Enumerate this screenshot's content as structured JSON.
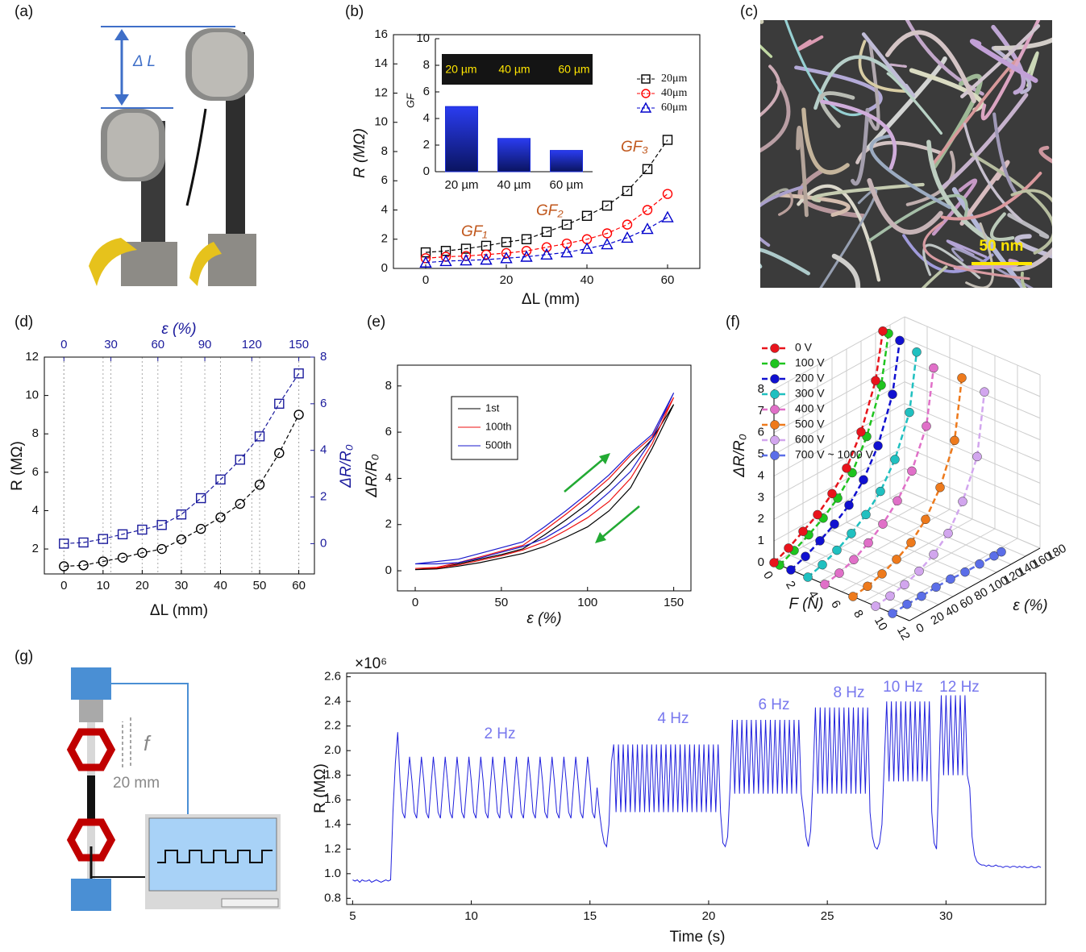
{
  "panel_labels": [
    "(a)",
    "(b)",
    "(c)",
    "(d)",
    "(e)",
    "(f)",
    "(g)"
  ],
  "panel_a": {
    "delta_label": "Δ L"
  },
  "panel_c": {
    "scale_bar": "50 nm"
  },
  "panel_g_schematic": {
    "force": "f",
    "amplitude": "20 mm"
  },
  "chart_data": [
    {
      "type": "line",
      "xlabel": "ΔL (mm)",
      "ylabel": "R (MΩ)",
      "x": [
        0,
        5,
        10,
        15,
        20,
        25,
        30,
        35,
        40,
        45,
        50,
        55,
        60
      ],
      "xlim": [
        -8,
        68
      ],
      "xticks": [
        0,
        20,
        40,
        60
      ],
      "ylim": [
        0,
        16
      ],
      "yticks": [
        0,
        2,
        4,
        6,
        8,
        10,
        12,
        14,
        16
      ],
      "series": [
        {
          "name": "20μm",
          "color": "#000000",
          "marker": "square",
          "values": [
            1.1,
            1.2,
            1.35,
            1.55,
            1.8,
            2.0,
            2.5,
            3.0,
            3.6,
            4.3,
            5.3,
            6.8,
            8.8
          ]
        },
        {
          "name": "40μm",
          "color": "#ff0000",
          "marker": "circle",
          "values": [
            0.7,
            0.8,
            0.85,
            0.95,
            1.05,
            1.2,
            1.45,
            1.7,
            2.0,
            2.4,
            3.0,
            4.0,
            5.1
          ]
        },
        {
          "name": "60μm",
          "color": "#0000cc",
          "marker": "triangle",
          "values": [
            0.4,
            0.5,
            0.55,
            0.6,
            0.7,
            0.8,
            0.95,
            1.1,
            1.35,
            1.65,
            2.1,
            2.7,
            3.5
          ]
        }
      ],
      "annotations": [
        "GF₁",
        "GF₂",
        "GF₃"
      ]
    },
    {
      "type": "bar",
      "ylabel": "GF",
      "categories": [
        "20 µm",
        "40 µm",
        "60 µm"
      ],
      "values": [
        4.9,
        2.5,
        1.6
      ],
      "color": "#1a2bd8",
      "ylim": [
        0,
        10
      ],
      "yticks": [
        0,
        2,
        4,
        6,
        8,
        10
      ],
      "image_labels": [
        "20 µm",
        "40 µm",
        "60 µm"
      ]
    },
    {
      "type": "dual",
      "xlabel": "ΔL (mm)",
      "ylabel": "R (MΩ)",
      "y2label": "ΔR/R₀",
      "x2label": "ε (%)",
      "x": [
        0,
        5,
        10,
        15,
        20,
        25,
        30,
        35,
        40,
        45,
        50,
        55,
        60
      ],
      "xlim": [
        -5,
        64
      ],
      "xticks": [
        0,
        10,
        20,
        30,
        40,
        50,
        60
      ],
      "x2lim": [
        -12.5,
        160
      ],
      "x2ticks": [
        0,
        30,
        60,
        90,
        120,
        150
      ],
      "ylim": [
        0.7,
        12
      ],
      "yticks": [
        2,
        4,
        6,
        8,
        10,
        12
      ],
      "y2lim": [
        -1.3,
        8
      ],
      "y2ticks": [
        0,
        2,
        4,
        6,
        8
      ],
      "grid": true,
      "series": [
        {
          "name": "R",
          "color": "#000000",
          "marker": "circle",
          "values": [
            1.1,
            1.15,
            1.35,
            1.55,
            1.8,
            2.0,
            2.5,
            3.05,
            3.65,
            4.35,
            5.35,
            7.0,
            9.0
          ]
        },
        {
          "name": "ΔR/R₀",
          "color": "#1a1a9c",
          "marker": "square",
          "axis": "y2",
          "values": [
            0,
            0.05,
            0.2,
            0.4,
            0.6,
            0.8,
            1.25,
            1.95,
            2.75,
            3.6,
            4.6,
            6.0,
            7.3
          ]
        }
      ]
    },
    {
      "type": "line",
      "xlabel": "ε (%)",
      "ylabel": "ΔR/R₀",
      "x": [
        0,
        12.5,
        25,
        37.5,
        50,
        62.5,
        75,
        87.5,
        100,
        112.5,
        125,
        137.5,
        150,
        137.5,
        125,
        112.5,
        100,
        87.5,
        75,
        62.5,
        50,
        37.5,
        25,
        12.5,
        0
      ],
      "xlim": [
        -10.3,
        160
      ],
      "xticks": [
        0,
        50,
        100,
        150
      ],
      "ylim": [
        -0.87,
        8.9
      ],
      "yticks": [
        0,
        2,
        4,
        6,
        8
      ],
      "series": [
        {
          "name": "1st",
          "color": "#000000",
          "values": [
            0.05,
            0.1,
            0.3,
            0.5,
            0.7,
            0.95,
            1.55,
            2.2,
            2.9,
            3.7,
            4.7,
            5.7,
            7.2,
            5.3,
            3.6,
            2.6,
            1.9,
            1.45,
            1.05,
            0.75,
            0.55,
            0.35,
            0.2,
            0.08,
            0.05
          ]
        },
        {
          "name": "100th",
          "color": "#ee1111",
          "values": [
            0.1,
            0.15,
            0.35,
            0.6,
            0.85,
            1.1,
            1.75,
            2.45,
            3.2,
            4.0,
            5.0,
            5.8,
            7.5,
            5.5,
            4.0,
            3.0,
            2.3,
            1.75,
            1.25,
            0.9,
            0.65,
            0.45,
            0.25,
            0.12,
            0.1
          ]
        },
        {
          "name": "500th",
          "color": "#1a1acc",
          "values": [
            0.3,
            0.4,
            0.5,
            0.75,
            1.0,
            1.25,
            1.9,
            2.6,
            3.35,
            4.15,
            5.1,
            5.9,
            7.7,
            5.7,
            4.3,
            3.4,
            2.6,
            1.95,
            1.4,
            1.05,
            0.8,
            0.55,
            0.35,
            0.3,
            0.3
          ]
        }
      ]
    },
    {
      "type": "scatter3d",
      "xlabel": "ε (%)",
      "flabel": "F (N)",
      "zlabel": "ΔR/R₀",
      "x": [
        0,
        20,
        40,
        60,
        80,
        100,
        120,
        140,
        150
      ],
      "xlim": [
        0,
        180
      ],
      "xticks": [
        0,
        20,
        40,
        60,
        80,
        100,
        120,
        140,
        160,
        180
      ],
      "flim": [
        0,
        12
      ],
      "fticks": [
        0,
        2,
        4,
        6,
        8,
        10,
        12
      ],
      "zlim": [
        0,
        8
      ],
      "zticks": [
        0,
        1,
        2,
        3,
        4,
        5,
        6,
        7,
        8
      ],
      "series": [
        {
          "name": "0 V",
          "color": "#e8141c",
          "F": 0,
          "values": [
            0,
            0.3,
            0.7,
            1.1,
            1.7,
            2.5,
            3.8,
            5.8,
            7.9
          ]
        },
        {
          "name": "100 V",
          "color": "#1fc41f",
          "F": 0.5,
          "values": [
            0,
            0.3,
            0.65,
            1.05,
            1.6,
            2.4,
            3.7,
            5.7,
            7.9
          ]
        },
        {
          "name": "200 V",
          "color": "#1010d0",
          "F": 1.5,
          "values": [
            0,
            0.25,
            0.6,
            1.0,
            1.5,
            2.3,
            3.5,
            5.5,
            7.8
          ]
        },
        {
          "name": "300 V",
          "color": "#20c0c0",
          "F": 3,
          "values": [
            0,
            0.2,
            0.5,
            0.9,
            1.4,
            2.1,
            3.2,
            5.0,
            7.6
          ]
        },
        {
          "name": "400 V",
          "color": "#e070c8",
          "F": 4.5,
          "values": [
            0,
            0.15,
            0.4,
            0.8,
            1.3,
            2.0,
            3.0,
            4.7,
            7.2
          ]
        },
        {
          "name": "500 V",
          "color": "#ee7a1c",
          "F": 7,
          "values": [
            0,
            0.1,
            0.3,
            0.6,
            1.0,
            1.7,
            2.8,
            4.6,
            7.3
          ]
        },
        {
          "name": "600 V",
          "color": "#d2a6ee",
          "F": 9,
          "values": [
            0,
            0.1,
            0.25,
            0.5,
            0.9,
            1.5,
            2.6,
            4.3,
            7.1
          ]
        },
        {
          "name": "700 V ~ 1000 V",
          "color": "#5b6ee8",
          "F": 10.5,
          "values": [
            0,
            0.05,
            0.05,
            0.1,
            0.1,
            0.05,
            0.05,
            0.05,
            0.05
          ]
        }
      ]
    },
    {
      "type": "line",
      "xlabel": "Time (s)",
      "ylabel": "R (MΩ)",
      "multiplier": "×10⁶",
      "xlim": [
        4.75,
        34.2
      ],
      "xticks": [
        5,
        10,
        15,
        20,
        25,
        30
      ],
      "ylim": [
        0.75,
        2.63
      ],
      "yticks": [
        0.8,
        {
          "value": 1,
          "label": "1.0"
        },
        1.2,
        1.4,
        1.6,
        1.8,
        {
          "value": 2,
          "label": "2.0"
        },
        2.2,
        2.4,
        2.6
      ],
      "annotations": [
        "2 Hz",
        "4 Hz",
        "6 Hz",
        "8 Hz",
        "10 Hz",
        "12 Hz"
      ],
      "x": [
        5,
        5.1,
        5.2,
        5.3,
        5.4,
        5.5,
        5.6,
        5.7,
        5.8,
        5.9,
        6,
        6.1,
        6.2,
        6.3,
        6.4,
        6.5,
        6.6,
        6.7,
        6.8,
        6.9,
        7,
        7.1,
        7.2,
        7.3,
        7.4,
        7.5,
        7.6,
        7.7,
        7.8,
        7.9,
        8,
        8.1,
        8.2,
        8.3,
        8.4,
        8.5,
        8.6,
        8.7,
        8.8,
        8.9,
        9,
        9.1,
        9.2,
        9.3,
        9.4,
        9.5,
        9.6,
        9.7,
        9.8,
        9.9,
        10,
        10.1,
        10.2,
        10.3,
        10.4,
        10.5,
        10.6,
        10.7,
        10.8,
        10.9,
        11,
        11.1,
        11.2,
        11.3,
        11.4,
        11.5,
        11.6,
        11.7,
        11.8,
        11.9,
        12,
        12.1,
        12.2,
        12.3,
        12.4,
        12.5,
        12.6,
        12.7,
        12.8,
        12.9,
        13,
        13.1,
        13.2,
        13.3,
        13.4,
        13.5,
        13.6,
        13.7,
        13.8,
        13.9,
        14,
        14.1,
        14.2,
        14.3,
        14.4,
        14.5,
        14.6,
        14.7,
        14.8,
        14.9,
        15,
        15.1,
        15.2,
        15.3,
        15.4,
        15.5,
        15.6,
        15.7,
        15.8,
        15.9,
        16,
        16.1,
        16.2,
        16.3,
        16.4,
        16.5,
        16.6,
        16.7,
        16.8,
        16.9,
        17,
        17.1,
        17.2,
        17.3,
        17.4,
        17.5,
        17.6,
        17.7,
        17.8,
        17.9,
        18,
        18.1,
        18.2,
        18.3,
        18.4,
        18.5,
        18.6,
        18.7,
        18.8,
        18.9,
        19,
        19.1,
        19.2,
        19.3,
        19.4,
        19.5,
        19.6,
        19.7,
        19.8,
        19.9,
        20,
        20.1,
        20.2,
        20.3,
        20.4,
        20.5,
        20.6,
        20.7,
        20.8,
        20.9,
        21,
        21.1,
        21.2,
        21.3,
        21.4,
        21.5,
        21.6,
        21.7,
        21.8,
        21.9,
        22,
        22.1,
        22.2,
        22.3,
        22.4,
        22.5,
        22.6,
        22.7,
        22.8,
        22.9,
        23,
        23.1,
        23.2,
        23.3,
        23.4,
        23.5,
        23.6,
        23.7,
        23.8,
        23.9,
        24,
        24.1,
        24.2,
        24.3,
        24.4,
        24.5,
        24.6,
        24.7,
        24.8,
        24.9,
        25,
        25.1,
        25.2,
        25.3,
        25.4,
        25.5,
        25.6,
        25.7,
        25.8,
        25.9,
        26,
        26.1,
        26.2,
        26.3,
        26.4,
        26.5,
        26.6,
        26.7,
        26.8,
        26.9,
        27,
        27.1,
        27.2,
        27.3,
        27.4,
        27.5,
        27.6,
        27.7,
        27.8,
        27.9,
        28,
        28.1,
        28.2,
        28.3,
        28.4,
        28.5,
        28.6,
        28.7,
        28.8,
        28.9,
        29,
        29.1,
        29.2,
        29.3,
        29.4,
        29.5,
        29.6,
        29.7,
        29.8,
        29.9,
        30,
        30.1,
        30.2,
        30.3,
        30.4,
        30.5,
        30.6,
        30.7,
        30.8,
        30.9,
        31,
        31.1,
        31.2,
        31.3,
        31.4,
        31.5,
        31.6,
        31.7,
        31.8,
        31.9,
        32,
        32.1,
        32.2,
        32.3,
        32.4,
        32.5,
        32.6,
        32.7,
        32.8,
        32.9,
        33,
        33.1,
        33.2,
        33.3,
        33.4,
        33.5,
        33.6,
        33.7,
        33.8,
        33.9,
        34
      ],
      "series": [
        {
          "name": "R",
          "color": "#2222dd",
          "values": [
            0.95,
            0.94,
            0.95,
            0.93,
            0.95,
            0.94,
            0.94,
            0.95,
            0.93,
            0.94,
            0.95,
            0.94,
            0.93,
            0.94,
            0.95,
            0.94,
            0.95,
            1.5,
            1.9,
            2.15,
            1.75,
            1.5,
            1.45,
            1.7,
            1.95,
            1.75,
            1.5,
            1.45,
            1.7,
            1.95,
            1.75,
            1.5,
            1.45,
            1.7,
            1.95,
            1.75,
            1.5,
            1.45,
            1.7,
            1.95,
            1.75,
            1.5,
            1.45,
            1.7,
            1.95,
            1.75,
            1.5,
            1.45,
            1.7,
            1.95,
            1.75,
            1.5,
            1.45,
            1.7,
            1.95,
            1.75,
            1.5,
            1.45,
            1.7,
            1.95,
            1.75,
            1.5,
            1.45,
            1.7,
            1.95,
            1.75,
            1.5,
            1.45,
            1.7,
            1.95,
            1.75,
            1.5,
            1.45,
            1.7,
            1.95,
            1.75,
            1.5,
            1.45,
            1.7,
            1.95,
            1.75,
            1.5,
            1.45,
            1.7,
            1.95,
            1.75,
            1.5,
            1.45,
            1.7,
            1.95,
            1.75,
            1.5,
            1.45,
            1.7,
            1.95,
            1.75,
            1.5,
            1.45,
            1.7,
            1.95,
            1.75,
            1.5,
            1.45,
            1.7,
            1.5,
            1.35,
            1.25,
            1.22,
            1.4,
            1.9,
            2.05,
            1.5,
            2.05,
            1.5,
            2.05,
            1.5,
            2.05,
            1.5,
            2.05,
            1.5,
            2.05,
            1.5,
            2.05,
            1.5,
            2.05,
            1.5,
            2.05,
            1.5,
            2.05,
            1.5,
            2.05,
            1.5,
            2.05,
            1.5,
            2.05,
            1.5,
            2.05,
            1.5,
            2.05,
            1.5,
            2.05,
            1.5,
            2.05,
            1.5,
            2.05,
            1.5,
            2.05,
            1.5,
            2.05,
            1.5,
            2.05,
            1.5,
            2.05,
            1.5,
            2.05,
            1.5,
            1.25,
            1.22,
            1.3,
            1.7,
            2.25,
            1.65,
            2.25,
            1.65,
            2.25,
            1.65,
            2.25,
            1.65,
            2.25,
            1.65,
            2.25,
            1.65,
            2.25,
            1.65,
            2.25,
            1.65,
            2.25,
            1.65,
            2.25,
            1.65,
            2.25,
            1.65,
            2.25,
            1.65,
            2.25,
            1.65,
            2.25,
            1.65,
            2.25,
            1.65,
            1.5,
            1.3,
            1.22,
            1.35,
            1.8,
            2.35,
            1.65,
            2.35,
            1.65,
            2.35,
            1.65,
            2.35,
            1.65,
            2.35,
            1.65,
            2.35,
            1.65,
            2.35,
            1.65,
            2.35,
            1.65,
            2.35,
            1.65,
            2.35,
            1.65,
            2.35,
            1.65,
            2.35,
            1.5,
            1.3,
            1.22,
            1.2,
            1.25,
            1.4,
            1.9,
            2.4,
            1.75,
            2.4,
            1.75,
            2.4,
            1.75,
            2.4,
            1.75,
            2.4,
            1.75,
            2.4,
            1.75,
            2.4,
            1.75,
            2.4,
            1.75,
            2.4,
            1.75,
            2.4,
            1.5,
            1.25,
            1.2,
            1.8,
            2.45,
            1.8,
            2.45,
            1.8,
            2.45,
            1.8,
            2.45,
            1.8,
            2.45,
            1.8,
            2.45,
            1.8,
            1.7,
            1.3,
            1.15,
            1.1,
            1.08,
            1.07,
            1.07,
            1.06,
            1.07,
            1.06,
            1.06,
            1.07,
            1.06,
            1.06,
            1.05,
            1.06,
            1.06,
            1.05,
            1.06,
            1.06,
            1.05,
            1.06,
            1.05,
            1.06,
            1.05,
            1.05,
            1.06,
            1.05,
            1.05,
            1.06,
            1.05
          ]
        }
      ]
    }
  ]
}
